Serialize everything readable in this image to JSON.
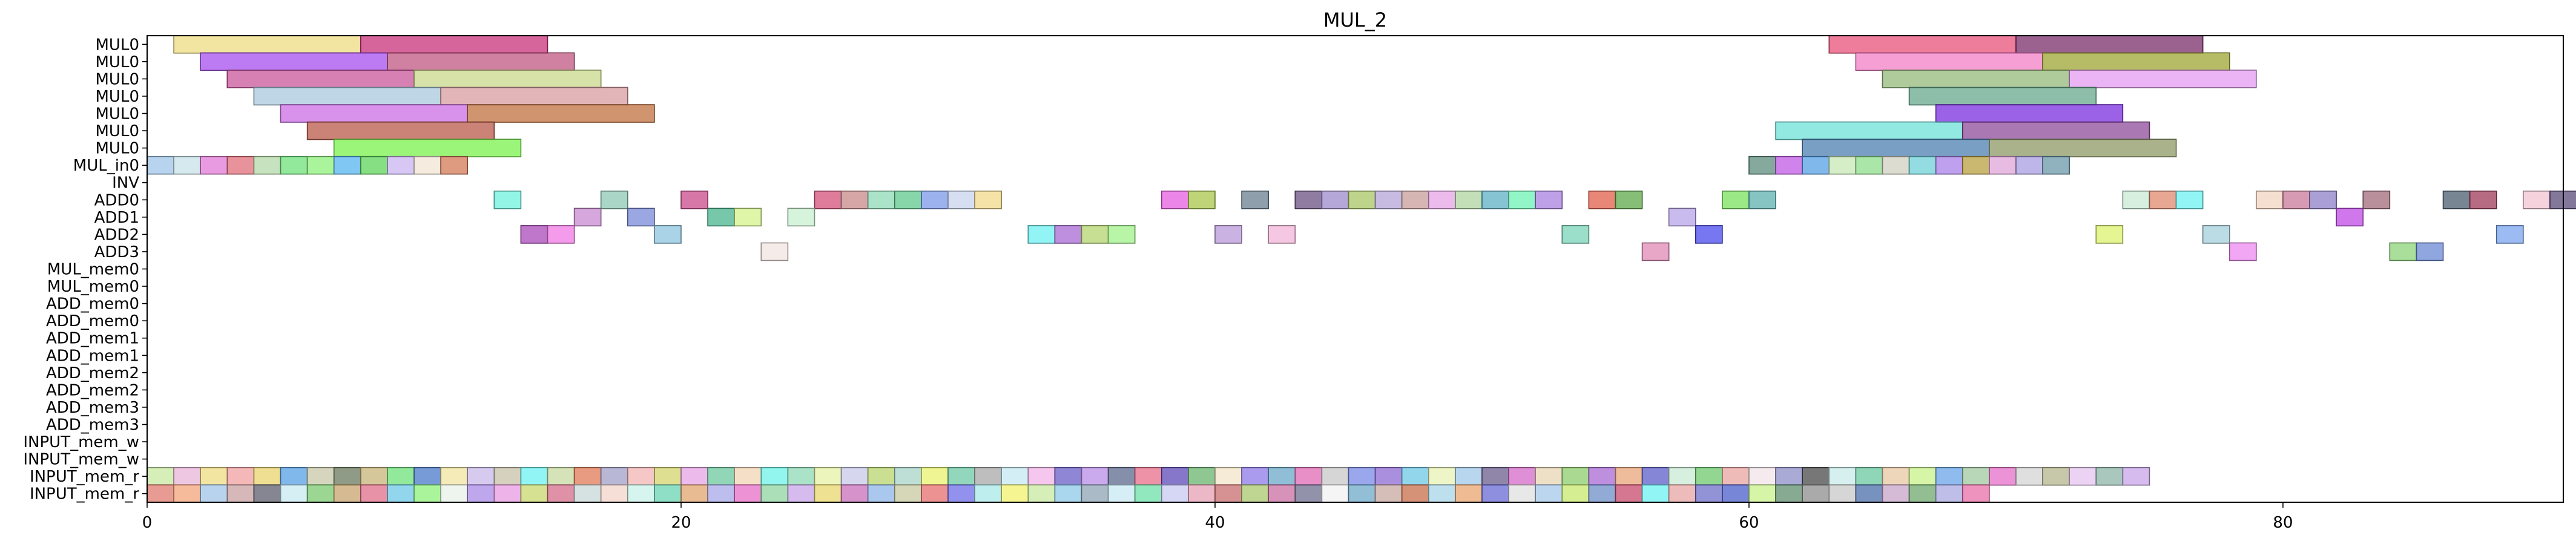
{
  "chart_data": {
    "type": "gantt",
    "title": "MUL_2",
    "xlabel": "",
    "ylabel": "",
    "xlim": [
      0,
      90.5
    ],
    "x_ticks": [
      0,
      20,
      40,
      60,
      80
    ],
    "grid": false,
    "legend": "none",
    "rows": [
      "MUL0",
      "MUL0",
      "MUL0",
      "MUL0",
      "MUL0",
      "MUL0",
      "MUL0",
      "MUL_in0",
      "INV",
      "ADD0",
      "ADD1",
      "ADD2",
      "ADD3",
      "MUL_mem0",
      "MUL_mem0",
      "ADD_mem0",
      "ADD_mem0",
      "ADD_mem1",
      "ADD_mem1",
      "ADD_mem2",
      "ADD_mem2",
      "ADD_mem3",
      "ADD_mem3",
      "INPUT_mem_w",
      "INPUT_mem_w",
      "INPUT_mem_r",
      "INPUT_mem_r"
    ],
    "bars": [
      {
        "row": 0,
        "start": 1,
        "end": 8,
        "color": "#eedc82"
      },
      {
        "row": 0,
        "start": 8,
        "end": 15,
        "color": "#c8327a"
      },
      {
        "row": 0,
        "start": 63,
        "end": 70,
        "color": "#e8507a"
      },
      {
        "row": 0,
        "start": 70,
        "end": 77,
        "color": "#7a2d6b"
      },
      {
        "row": 1,
        "start": 2,
        "end": 9,
        "color": "#a64fee"
      },
      {
        "row": 1,
        "start": 9,
        "end": 16,
        "color": "#c05680"
      },
      {
        "row": 1,
        "start": 64,
        "end": 71,
        "color": "#f27fc7"
      },
      {
        "row": 1,
        "start": 71,
        "end": 78,
        "color": "#9ea433"
      },
      {
        "row": 2,
        "start": 3,
        "end": 10,
        "color": "#c8569a"
      },
      {
        "row": 2,
        "start": 10,
        "end": 17,
        "color": "#c8d88a"
      },
      {
        "row": 2,
        "start": 65,
        "end": 72,
        "color": "#94ba7a"
      },
      {
        "row": 2,
        "start": 72,
        "end": 79,
        "color": "#e39bf2"
      },
      {
        "row": 3,
        "start": 4,
        "end": 11,
        "color": "#a8c8dc"
      },
      {
        "row": 3,
        "start": 11,
        "end": 18,
        "color": "#d89ca0"
      },
      {
        "row": 3,
        "start": 66,
        "end": 73,
        "color": "#66a88c"
      },
      {
        "row": 4,
        "start": 5,
        "end": 12,
        "color": "#cc6ee6"
      },
      {
        "row": 4,
        "start": 12,
        "end": 19,
        "color": "#c0703f"
      },
      {
        "row": 4,
        "start": 67,
        "end": 74,
        "color": "#7a2de0"
      },
      {
        "row": 5,
        "start": 6,
        "end": 13,
        "color": "#b85a48"
      },
      {
        "row": 5,
        "start": 61,
        "end": 68,
        "color": "#6ee2d8"
      },
      {
        "row": 5,
        "start": 68,
        "end": 75,
        "color": "#8e4b9a"
      },
      {
        "row": 6,
        "start": 7,
        "end": 14,
        "color": "#7af24c"
      },
      {
        "row": 6,
        "start": 62,
        "end": 69,
        "color": "#4d7fb0"
      },
      {
        "row": 6,
        "start": 69,
        "end": 76,
        "color": "#8e9866"
      },
      {
        "row": 7,
        "start": 0,
        "end": 1,
        "color": "#a0c4e8"
      },
      {
        "row": 7,
        "start": 1,
        "end": 2,
        "color": "#c8e2e8"
      },
      {
        "row": 7,
        "start": 2,
        "end": 3,
        "color": "#e07ad6"
      },
      {
        "row": 7,
        "start": 3,
        "end": 4,
        "color": "#e06e7a"
      },
      {
        "row": 7,
        "start": 4,
        "end": 5,
        "color": "#b4d8a8"
      },
      {
        "row": 7,
        "start": 5,
        "end": 6,
        "color": "#6ee07a"
      },
      {
        "row": 7,
        "start": 6,
        "end": 7,
        "color": "#8ef27a"
      },
      {
        "row": 7,
        "start": 7,
        "end": 8,
        "color": "#56b4f0"
      },
      {
        "row": 7,
        "start": 8,
        "end": 9,
        "color": "#5ed45a"
      },
      {
        "row": 7,
        "start": 9,
        "end": 10,
        "color": "#c8b4f2"
      },
      {
        "row": 7,
        "start": 10,
        "end": 11,
        "color": "#f2e4d4"
      },
      {
        "row": 7,
        "start": 11,
        "end": 12,
        "color": "#d47a56"
      },
      {
        "row": 7,
        "start": 60,
        "end": 61,
        "color": "#5e8c7e"
      },
      {
        "row": 7,
        "start": 61,
        "end": 62,
        "color": "#c25ae6"
      },
      {
        "row": 7,
        "start": 62,
        "end": 63,
        "color": "#56a0e6"
      },
      {
        "row": 7,
        "start": 63,
        "end": 64,
        "color": "#c8e8b4"
      },
      {
        "row": 7,
        "start": 64,
        "end": 65,
        "color": "#8ede8a"
      },
      {
        "row": 7,
        "start": 65,
        "end": 66,
        "color": "#d0d0c0"
      },
      {
        "row": 7,
        "start": 66,
        "end": 67,
        "color": "#6ed0d8"
      },
      {
        "row": 7,
        "start": 67,
        "end": 68,
        "color": "#a880e8"
      },
      {
        "row": 7,
        "start": 68,
        "end": 69,
        "color": "#b8a040"
      },
      {
        "row": 7,
        "start": 69,
        "end": 70,
        "color": "#e0a4d8"
      },
      {
        "row": 7,
        "start": 70,
        "end": 71,
        "color": "#a89ee0"
      },
      {
        "row": 7,
        "start": 71,
        "end": 72,
        "color": "#6a98a8"
      },
      {
        "row": 9,
        "start": 13,
        "end": 14,
        "color": "#6ef2de"
      },
      {
        "row": 9,
        "start": 17,
        "end": 18,
        "color": "#8ec8b4"
      },
      {
        "row": 9,
        "start": 20,
        "end": 21,
        "color": "#c84a8a"
      },
      {
        "row": 9,
        "start": 25,
        "end": 26,
        "color": "#d4507a"
      },
      {
        "row": 9,
        "start": 26,
        "end": 27,
        "color": "#c8888a"
      },
      {
        "row": 9,
        "start": 27,
        "end": 28,
        "color": "#8edab4"
      },
      {
        "row": 9,
        "start": 28,
        "end": 29,
        "color": "#5ec88e"
      },
      {
        "row": 9,
        "start": 29,
        "end": 30,
        "color": "#7a98e8"
      },
      {
        "row": 9,
        "start": 30,
        "end": 31,
        "color": "#c8d4ee"
      },
      {
        "row": 9,
        "start": 31,
        "end": 32,
        "color": "#f0d88a"
      },
      {
        "row": 9,
        "start": 38,
        "end": 39,
        "color": "#e65ee0"
      },
      {
        "row": 9,
        "start": 39,
        "end": 40,
        "color": "#a8c64a"
      },
      {
        "row": 9,
        "start": 41,
        "end": 42,
        "color": "#6a8090"
      },
      {
        "row": 9,
        "start": 43,
        "end": 44,
        "color": "#6a5080"
      },
      {
        "row": 9,
        "start": 44,
        "end": 45,
        "color": "#9e8acc"
      },
      {
        "row": 9,
        "start": 45,
        "end": 46,
        "color": "#a8c664"
      },
      {
        "row": 9,
        "start": 46,
        "end": 47,
        "color": "#b4a4d8"
      },
      {
        "row": 9,
        "start": 47,
        "end": 48,
        "color": "#c89e9a"
      },
      {
        "row": 9,
        "start": 48,
        "end": 49,
        "color": "#e6a4e6"
      },
      {
        "row": 9,
        "start": 49,
        "end": 50,
        "color": "#aed4a0"
      },
      {
        "row": 9,
        "start": 50,
        "end": 51,
        "color": "#5eb0c4"
      },
      {
        "row": 9,
        "start": 51,
        "end": 52,
        "color": "#6ef2b4"
      },
      {
        "row": 9,
        "start": 52,
        "end": 53,
        "color": "#a880e0"
      },
      {
        "row": 9,
        "start": 54,
        "end": 55,
        "color": "#e05e4a"
      },
      {
        "row": 9,
        "start": 55,
        "end": 56,
        "color": "#5ea84a"
      },
      {
        "row": 9,
        "start": 59,
        "end": 60,
        "color": "#7ae05e"
      },
      {
        "row": 9,
        "start": 60,
        "end": 61,
        "color": "#5eb0b0"
      },
      {
        "row": 9,
        "start": 74,
        "end": 75,
        "color": "#c8ead4"
      },
      {
        "row": 9,
        "start": 75,
        "end": 76,
        "color": "#e08a6e"
      },
      {
        "row": 9,
        "start": 76,
        "end": 77,
        "color": "#6ef2f2"
      },
      {
        "row": 9,
        "start": 79,
        "end": 80,
        "color": "#f2d4c0"
      },
      {
        "row": 9,
        "start": 80,
        "end": 81,
        "color": "#c87a9a"
      },
      {
        "row": 9,
        "start": 81,
        "end": 82,
        "color": "#8e80c8"
      },
      {
        "row": 9,
        "start": 83,
        "end": 84,
        "color": "#a06a7a"
      },
      {
        "row": 9,
        "start": 86,
        "end": 87,
        "color": "#4a5e6e"
      },
      {
        "row": 9,
        "start": 87,
        "end": 88,
        "color": "#9e3a5a"
      },
      {
        "row": 9,
        "start": 89,
        "end": 90,
        "color": "#f2c4d0"
      },
      {
        "row": 9,
        "start": 90,
        "end": 91,
        "color": "#5a4a78"
      },
      {
        "row": 10,
        "start": 16,
        "end": 17,
        "color": "#c88ad0"
      },
      {
        "row": 10,
        "start": 18,
        "end": 19,
        "color": "#7a8ad8"
      },
      {
        "row": 10,
        "start": 21,
        "end": 22,
        "color": "#4ab48e"
      },
      {
        "row": 10,
        "start": 22,
        "end": 23,
        "color": "#d4f28a"
      },
      {
        "row": 10,
        "start": 24,
        "end": 25,
        "color": "#c8f0d0"
      },
      {
        "row": 10,
        "start": 57,
        "end": 58,
        "color": "#b8a4e8"
      },
      {
        "row": 10,
        "start": 82,
        "end": 83,
        "color": "#c04ae6"
      },
      {
        "row": 11,
        "start": 14,
        "end": 15,
        "color": "#a84ab8"
      },
      {
        "row": 11,
        "start": 15,
        "end": 16,
        "color": "#f27ae6"
      },
      {
        "row": 11,
        "start": 19,
        "end": 20,
        "color": "#8ec4e0"
      },
      {
        "row": 11,
        "start": 33,
        "end": 34,
        "color": "#6ef0f0"
      },
      {
        "row": 11,
        "start": 34,
        "end": 35,
        "color": "#a86ad4"
      },
      {
        "row": 11,
        "start": 35,
        "end": 36,
        "color": "#b4d46e"
      },
      {
        "row": 11,
        "start": 36,
        "end": 37,
        "color": "#a0f28a"
      },
      {
        "row": 11,
        "start": 40,
        "end": 41,
        "color": "#b89ad8"
      },
      {
        "row": 11,
        "start": 42,
        "end": 43,
        "color": "#f2b4d8"
      },
      {
        "row": 11,
        "start": 53,
        "end": 54,
        "color": "#7ad4b8"
      },
      {
        "row": 11,
        "start": 58,
        "end": 59,
        "color": "#4a4aee"
      },
      {
        "row": 11,
        "start": 73,
        "end": 74,
        "color": "#dcf26e"
      },
      {
        "row": 11,
        "start": 77,
        "end": 78,
        "color": "#a4d0dc"
      },
      {
        "row": 11,
        "start": 88,
        "end": 89,
        "color": "#7aa4ee"
      },
      {
        "row": 12,
        "start": 23,
        "end": 24,
        "color": "#f2e4e0"
      },
      {
        "row": 12,
        "start": 56,
        "end": 57,
        "color": "#e08ab4"
      },
      {
        "row": 12,
        "start": 78,
        "end": 79,
        "color": "#ee8af2"
      },
      {
        "row": 12,
        "start": 84,
        "end": 85,
        "color": "#8ed47a"
      },
      {
        "row": 12,
        "start": 85,
        "end": 86,
        "color": "#6a88d4"
      }
    ],
    "input_rows": [
      {
        "row": 25,
        "colors": [
          "#c8e8a0",
          "#e8b4d8",
          "#eedc82",
          "#f0a0a0",
          "#e8d46e",
          "#56a0e6",
          "#c8c8a8",
          "#6a7a5e",
          "#c8b47a",
          "#6ee07a",
          "#4a7ac8",
          "#f2e4a0",
          "#c8b8e8",
          "#c8c0a8",
          "#6ef2f2",
          "#c8d8a0",
          "#e07a56",
          "#a0a0c8",
          "#f2b4b4",
          "#d4d46e",
          "#e6a4e6",
          "#6ec8a0",
          "#f2d4b4",
          "#6ef2e8",
          "#8edab4",
          "#e6f2a4",
          "#c8c8e8",
          "#b8d46e",
          "#a8d4c8",
          "#e8f26e",
          "#6ec8a4",
          "#a8a8a8",
          "#c4e8f0",
          "#f2b4e8",
          "#6a5ec8",
          "#b88ee6",
          "#5e6a8e",
          "#e86e8a",
          "#5e4ab8",
          "#6ab46e",
          "#f2e4c8",
          "#8e7ae8",
          "#6aa8c8",
          "#e06ab4",
          "#c8c8c8",
          "#7a8ae6",
          "#8e6ad4",
          "#6ec8e6",
          "#e8f2b4",
          "#a0c8e8",
          "#6a5e8e",
          "#d46ac8",
          "#e8d4b4",
          "#8ecc6e",
          "#a86ad4",
          "#e8a47a",
          "#5e5ec8",
          "#c8ead4",
          "#6ec86e",
          "#e8a4a0",
          "#f2e4e8",
          "#8e8ec8",
          "#4a4a4a",
          "#c8eaea",
          "#6ac8a0",
          "#e8c8a4",
          "#c8f28a",
          "#6aa4e8",
          "#a0c8a0",
          "#e66ec8",
          "#d4d4d4",
          "#b4b48e",
          "#e6c4f0",
          "#8eb4a8",
          "#c8a4e8"
        ]
      },
      {
        "row": 26,
        "colors": [
          "#e07a6e",
          "#f2a47a",
          "#a0c4e8",
          "#c8a0a0",
          "#5e5e6e",
          "#c8eaf2",
          "#7ac86e",
          "#c8a46e",
          "#e06e8a",
          "#6ec8e8",
          "#8ef27a",
          "#e8f2e8",
          "#a88ae6",
          "#e89ae0",
          "#c8d86e",
          "#d46e8a",
          "#c8d8d8",
          "#f2d4c8",
          "#c8f2e8",
          "#6ad4b4",
          "#e0a46e",
          "#a8a8e8",
          "#e86ec8",
          "#8ed4a0",
          "#c8a4e8",
          "#e8d86e",
          "#c86eb8",
          "#8eb4e8",
          "#c8c8a0",
          "#e66e6e",
          "#6e6ee8",
          "#a8e8e8",
          "#f2f26e",
          "#c8e8a0",
          "#8ec8e8",
          "#8ea4b4",
          "#c8e8f2",
          "#6ee0a8",
          "#c8c8f2",
          "#e6a0b4",
          "#c86e6e",
          "#a8c86e",
          "#c86ea0",
          "#6e6e8e",
          "#f2f2f2",
          "#6ea8c8",
          "#c8a8a0",
          "#c86e4a",
          "#a8d4e8",
          "#e8a46e",
          "#6a6ad4",
          "#e0e0e0",
          "#a4c8e8",
          "#c8e86e",
          "#6e8ec8",
          "#c84a6e",
          "#6ef2f2",
          "#e8a4a4",
          "#6e6ec8",
          "#4a5ec8",
          "#c8f28a",
          "#5e8e6e",
          "#8e8e8e",
          "#c8c8c8",
          "#4a6ea8",
          "#c8a4c8",
          "#6ea86e",
          "#a8a8e0",
          "#e86ea8"
        ]
      }
    ]
  }
}
